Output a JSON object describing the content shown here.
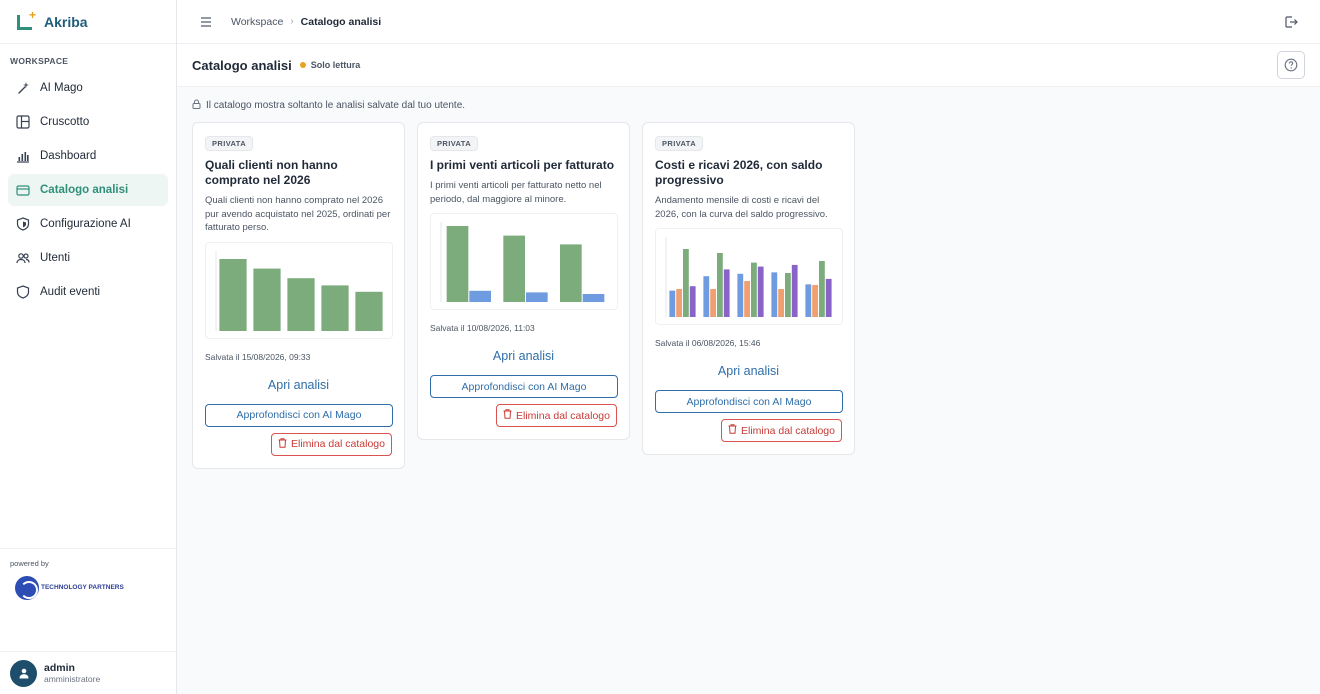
{
  "brand": {
    "name": "Akriba"
  },
  "sidebar": {
    "section_label": "WORKSPACE",
    "items": [
      {
        "label": "AI Mago",
        "icon": "sparkle-icon"
      },
      {
        "label": "Cruscotto",
        "icon": "layout-icon"
      },
      {
        "label": "Dashboard",
        "icon": "bar-chart-icon"
      },
      {
        "label": "Catalogo analisi",
        "icon": "folder-icon",
        "active": true
      },
      {
        "label": "Configurazione AI",
        "icon": "shield-icon"
      },
      {
        "label": "Utenti",
        "icon": "users-icon"
      },
      {
        "label": "Audit eventi",
        "icon": "shield-icon"
      }
    ],
    "powered_by": "powered by",
    "partner_logo_text": "TECHNOLOGY PARTNERS"
  },
  "user": {
    "name": "admin",
    "role": "amministratore"
  },
  "breadcrumb": {
    "root": "Workspace",
    "current": "Catalogo analisi"
  },
  "page": {
    "title": "Catalogo analisi",
    "mode": "Solo lettura"
  },
  "notice": "Il catalogo mostra soltanto le analisi salvate dal tuo utente.",
  "colors": {
    "accent": "#2f8f7a",
    "link": "#2f6ea8",
    "danger": "#c73b36",
    "bar_green": "#7cab7c",
    "bar_blue": "#6f9be0",
    "bar_purple": "#8a63c8",
    "bar_orange": "#f0a070"
  },
  "cards": [
    {
      "badge": "PRIVATA",
      "title": "Quali clienti non hanno comprato nel 2026",
      "description": "Quali clienti non hanno comprato nel 2026 pur avendo acquistato nel 2025, ordinati per fatturato perso.",
      "saved": "Salvata il 15/08/2026, 09:33",
      "open_label": "Apri analisi",
      "ai_label": "Approfondisci con AI Mago",
      "delete_label": "Elimina dal catalogo",
      "thumb_values": [
        [
          0.9
        ],
        [
          0.78
        ],
        [
          0.66
        ],
        [
          0.57
        ],
        [
          0.49
        ]
      ]
    },
    {
      "badge": "PRIVATA",
      "title": "I primi venti articoli per fatturato",
      "description": "I primi venti articoli per fatturato netto nel periodo, dal maggiore al minore.",
      "saved": "Salvata il 10/08/2026, 11:03",
      "open_label": "Apri analisi",
      "ai_label": "Approfondisci con AI Mago",
      "delete_label": "Elimina dal catalogo",
      "thumb_values": [
        [
          0.95,
          0.14
        ],
        [
          0.83,
          0.12
        ],
        [
          0.72,
          0.1
        ]
      ]
    },
    {
      "badge": "PRIVATA",
      "title": "Costi e ricavi 2026, con saldo progressivo",
      "description": "Andamento mensile di costi e ricavi del 2026, con la curva del saldo progressivo.",
      "saved": "Salvata il 06/08/2026, 15:46",
      "open_label": "Apri analisi",
      "ai_label": "Approfondisci con AI Mago",
      "delete_label": "Elimina dal catalogo",
      "thumb_values": [
        [
          0.55,
          0.35,
          0.85
        ],
        [
          0.85,
          0.35,
          0.8
        ],
        [
          0.9,
          0.45,
          0.68
        ],
        [
          0.93,
          0.35,
          0.55
        ],
        [
          0.68,
          0.4,
          0.7
        ]
      ]
    }
  ]
}
